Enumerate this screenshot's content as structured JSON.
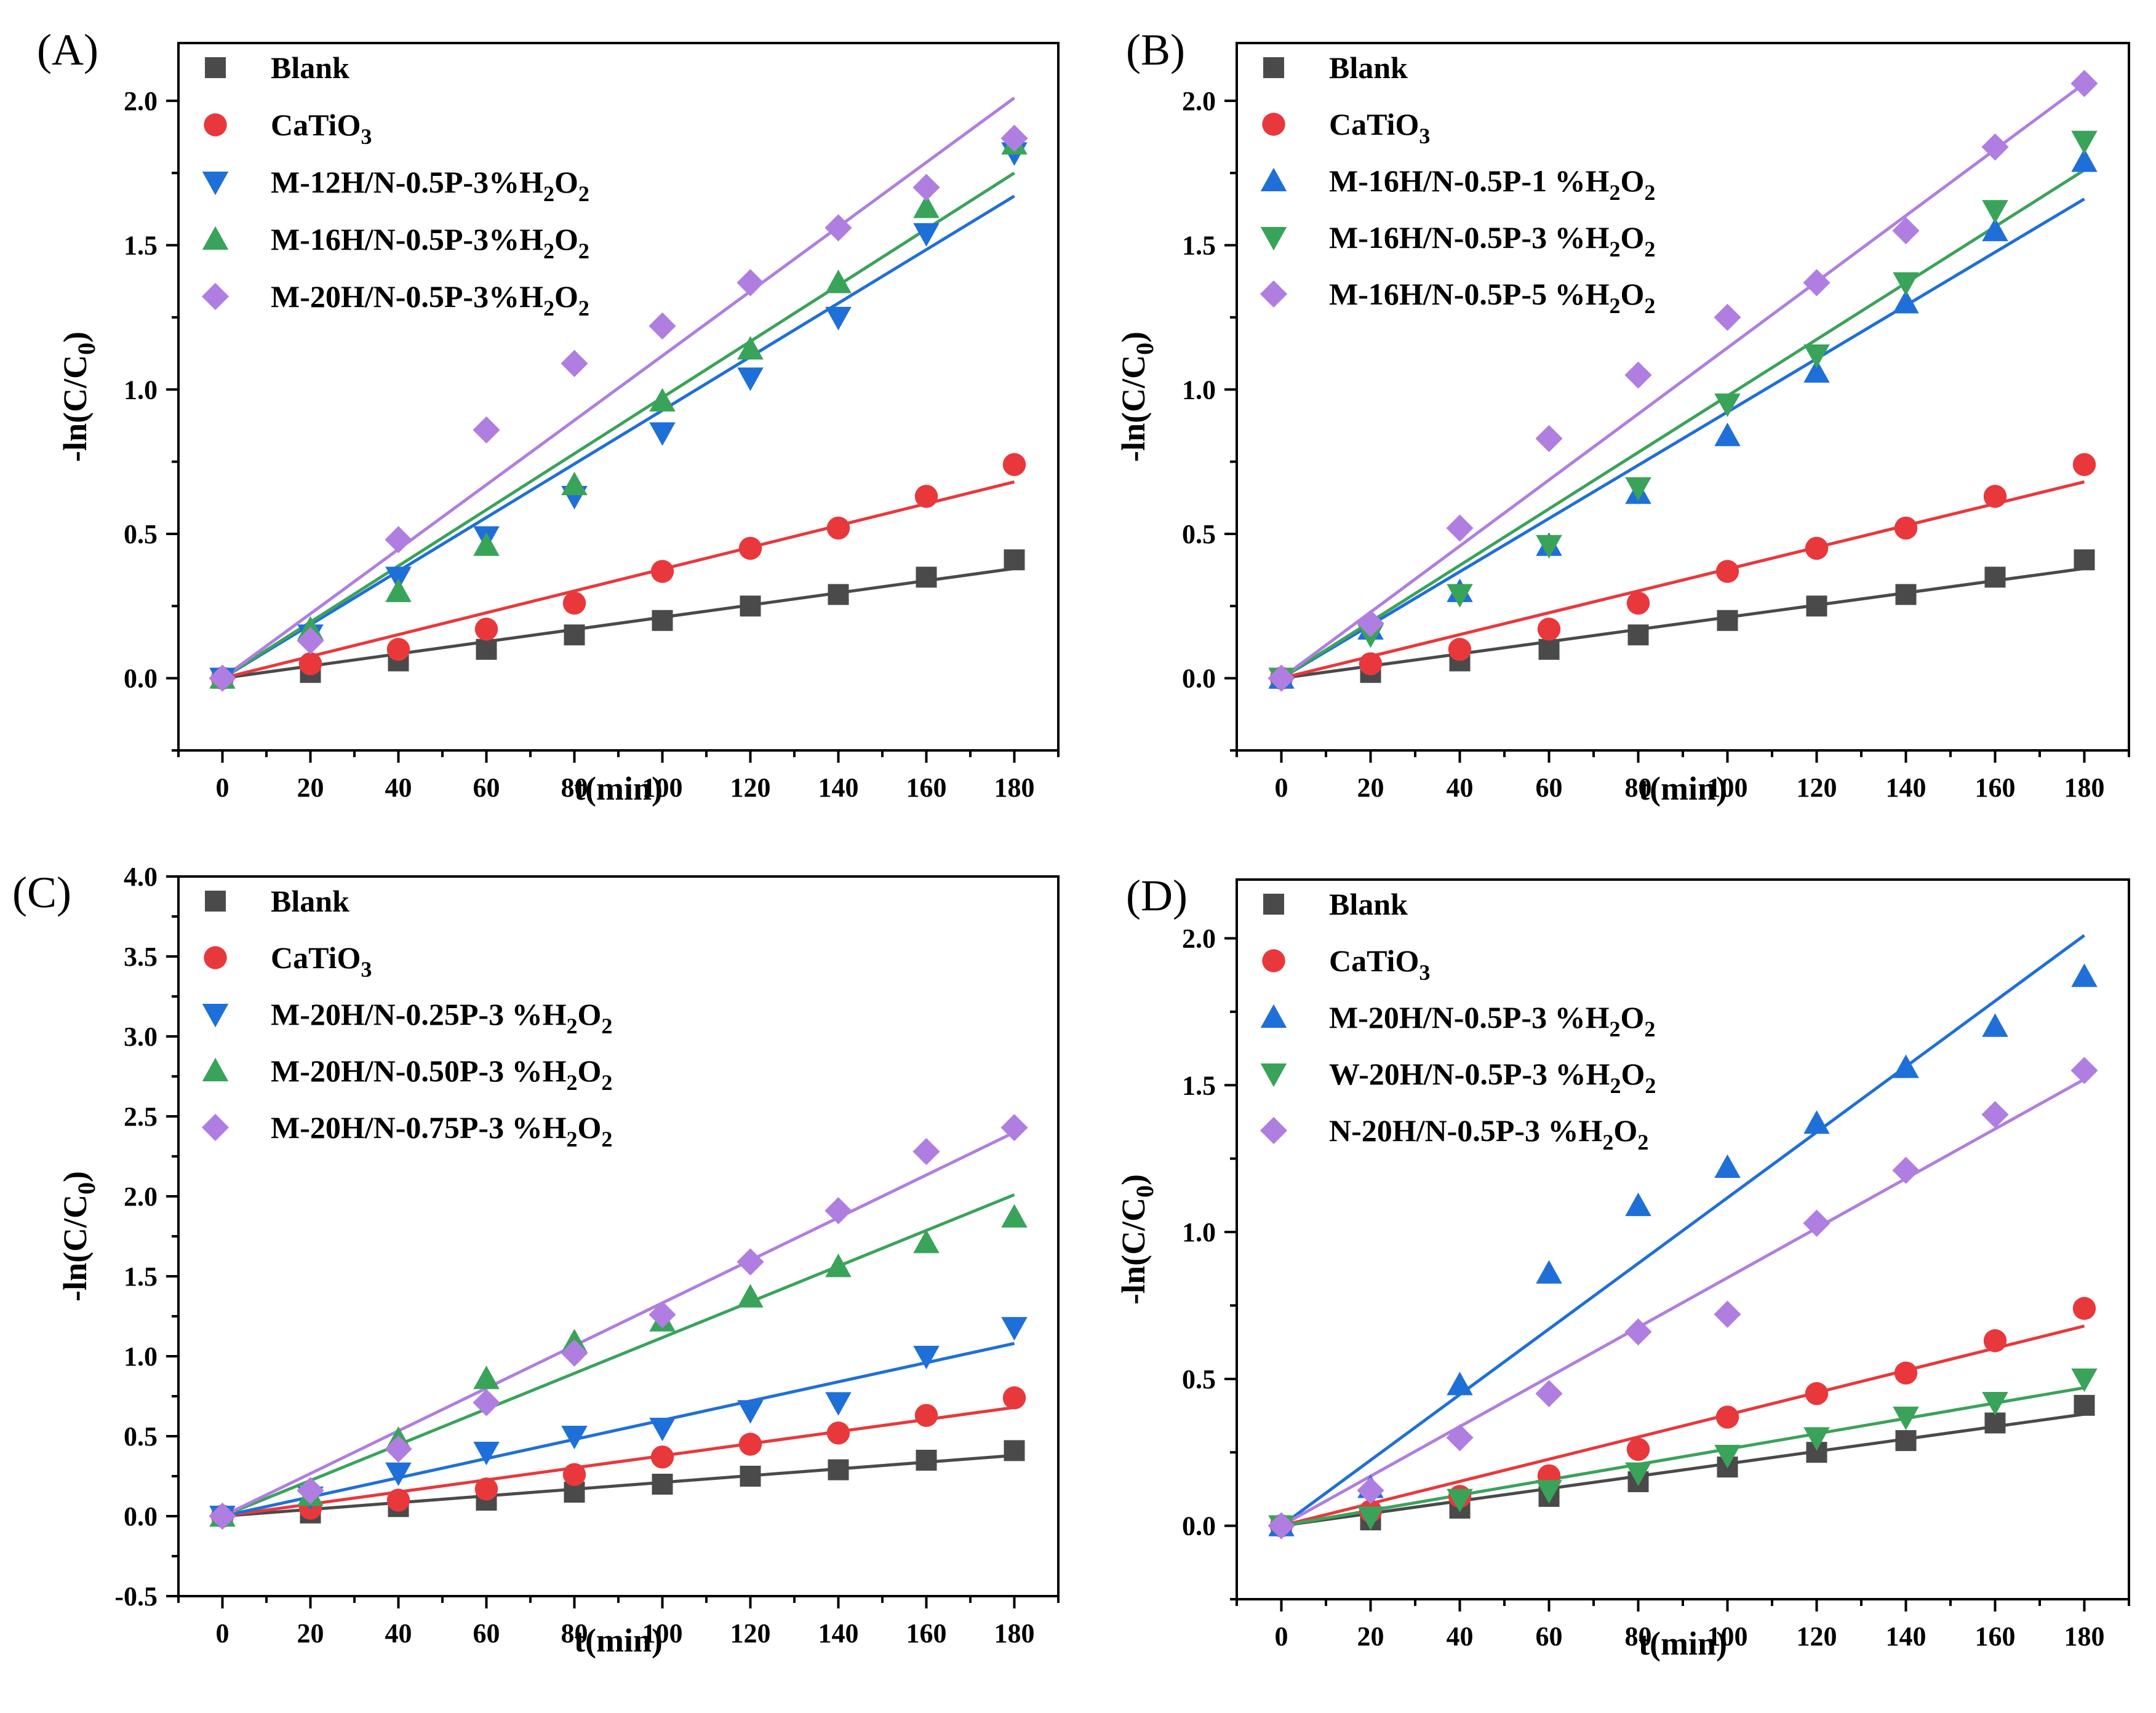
{
  "chart_data": [
    {
      "type": "scatter",
      "panel_label": "(A)",
      "xlabel": "t(min)",
      "ylabel": "-ln(C/C0)",
      "xlim": [
        -10,
        190
      ],
      "ylim": [
        -0.25,
        2.2
      ],
      "xticks": [
        0,
        20,
        40,
        60,
        80,
        100,
        120,
        140,
        160,
        180
      ],
      "yticks": [
        0.0,
        0.5,
        1.0,
        1.5,
        2.0
      ],
      "ytick_labels": [
        "0.0",
        "0.5",
        "1.0",
        "1.5",
        "2.0"
      ],
      "minor_y": true,
      "legend_position": "top-left",
      "x": [
        0,
        20,
        40,
        60,
        80,
        100,
        120,
        140,
        160,
        180
      ],
      "series": [
        {
          "name": "Blank",
          "marker": "square",
          "color": "#4a4a4a",
          "values": [
            0.0,
            0.02,
            0.06,
            0.1,
            0.15,
            0.2,
            0.25,
            0.29,
            0.35,
            0.41
          ],
          "fit_end": 0.38
        },
        {
          "name": "CaTiO3",
          "marker": "circle",
          "color": "#e8383c",
          "values": [
            0.0,
            0.05,
            0.1,
            0.17,
            0.26,
            0.37,
            0.45,
            0.52,
            0.63,
            0.74
          ],
          "fit_end": 0.68
        },
        {
          "name": "M-12H/N-0.5P-3%H2O2",
          "marker": "triangle-down",
          "color": "#1f6fd8",
          "values": [
            0.0,
            0.15,
            0.35,
            0.49,
            0.63,
            0.85,
            1.04,
            1.25,
            1.54,
            1.82
          ],
          "fit_end": 1.67
        },
        {
          "name": "M-16H/N-0.5P-3%H2O2",
          "marker": "triangle-up",
          "color": "#3aa35a",
          "values": [
            0.0,
            0.17,
            0.3,
            0.46,
            0.67,
            0.96,
            1.14,
            1.37,
            1.63,
            1.85
          ],
          "fit_end": 1.75
        },
        {
          "name": "M-20H/N-0.5P-3%H2O2",
          "marker": "diamond",
          "color": "#b07ee0",
          "values": [
            0.0,
            0.13,
            0.48,
            0.86,
            1.09,
            1.22,
            1.37,
            1.56,
            1.7,
            1.87
          ],
          "fit_end": 2.01
        }
      ]
    },
    {
      "type": "scatter",
      "panel_label": "(B)",
      "xlabel": "t(min)",
      "ylabel": "-ln(C/C0)",
      "xlim": [
        -10,
        190
      ],
      "ylim": [
        -0.25,
        2.2
      ],
      "xticks": [
        0,
        20,
        40,
        60,
        80,
        100,
        120,
        140,
        160,
        180
      ],
      "yticks": [
        0.0,
        0.5,
        1.0,
        1.5,
        2.0
      ],
      "ytick_labels": [
        "0.0",
        "0.5",
        "1.0",
        "1.5",
        "2.0"
      ],
      "minor_y": true,
      "legend_position": "top-left",
      "x": [
        0,
        20,
        40,
        60,
        80,
        100,
        120,
        140,
        160,
        180
      ],
      "series": [
        {
          "name": "Blank",
          "marker": "square",
          "color": "#4a4a4a",
          "values": [
            0.0,
            0.02,
            0.06,
            0.1,
            0.15,
            0.2,
            0.25,
            0.29,
            0.35,
            0.41
          ],
          "fit_end": 0.38
        },
        {
          "name": "CaTiO3",
          "marker": "circle",
          "color": "#e8383c",
          "values": [
            0.0,
            0.05,
            0.1,
            0.17,
            0.26,
            0.37,
            0.45,
            0.52,
            0.63,
            0.74
          ],
          "fit_end": 0.68
        },
        {
          "name": "M-16H/N-0.5P-1 %H2O2",
          "marker": "triangle-up",
          "color": "#1f6fd8",
          "values": [
            0.0,
            0.17,
            0.3,
            0.46,
            0.64,
            0.84,
            1.06,
            1.3,
            1.55,
            1.79
          ],
          "fit_end": 1.66
        },
        {
          "name": "M-16H/N-0.5P-3 %H2O2",
          "marker": "triangle-down",
          "color": "#3aa35a",
          "values": [
            0.0,
            0.15,
            0.29,
            0.46,
            0.66,
            0.95,
            1.12,
            1.37,
            1.62,
            1.86
          ],
          "fit_end": 1.76
        },
        {
          "name": "M-16H/N-0.5P-5 %H2O2",
          "marker": "diamond",
          "color": "#b07ee0",
          "values": [
            0.0,
            0.19,
            0.52,
            0.83,
            1.05,
            1.25,
            1.37,
            1.55,
            1.84,
            2.06
          ],
          "fit_end": 2.06
        }
      ]
    },
    {
      "type": "scatter",
      "panel_label": "(C)",
      "xlabel": "t(min)",
      "ylabel": "-ln(C/C0)",
      "xlim": [
        -10,
        190
      ],
      "ylim": [
        -0.5,
        4.0
      ],
      "xticks": [
        0,
        20,
        40,
        60,
        80,
        100,
        120,
        140,
        160,
        180
      ],
      "yticks": [
        -0.5,
        0.0,
        0.5,
        1.0,
        1.5,
        2.0,
        2.5,
        3.0,
        3.5,
        4.0
      ],
      "ytick_labels": [
        "-0.5",
        "0.0",
        "0.5",
        "1.0",
        "1.5",
        "2.0",
        "2.5",
        "3.0",
        "3.5",
        "4.0"
      ],
      "minor_y": true,
      "legend_position": "top-left",
      "x": [
        0,
        20,
        40,
        60,
        80,
        100,
        120,
        140,
        160,
        180
      ],
      "series": [
        {
          "name": "Blank",
          "marker": "square",
          "color": "#4a4a4a",
          "values": [
            0.0,
            0.02,
            0.06,
            0.1,
            0.15,
            0.2,
            0.25,
            0.29,
            0.35,
            0.41
          ],
          "fit_end": 0.38
        },
        {
          "name": "CaTiO3",
          "marker": "circle",
          "color": "#e8383c",
          "values": [
            0.0,
            0.05,
            0.1,
            0.17,
            0.26,
            0.37,
            0.45,
            0.52,
            0.63,
            0.74
          ],
          "fit_end": 0.68
        },
        {
          "name": "M-20H/N-0.25P-3 %H2O2",
          "marker": "triangle-down",
          "color": "#1f6fd8",
          "values": [
            0.0,
            0.12,
            0.27,
            0.4,
            0.5,
            0.55,
            0.66,
            0.71,
            1.0,
            1.18
          ],
          "fit_end": 1.08
        },
        {
          "name": "M-20H/N-0.50P-3 %H2O2",
          "marker": "triangle-up",
          "color": "#3aa35a",
          "values": [
            0.0,
            0.13,
            0.48,
            0.86,
            1.09,
            1.22,
            1.37,
            1.56,
            1.71,
            1.87
          ],
          "fit_end": 2.01
        },
        {
          "name": "M-20H/N-0.75P-3 %H2O2",
          "marker": "diamond",
          "color": "#b07ee0",
          "values": [
            0.0,
            0.16,
            0.42,
            0.71,
            1.02,
            1.26,
            1.59,
            1.91,
            2.28,
            2.43
          ],
          "fit_end": 2.4
        }
      ]
    },
    {
      "type": "scatter",
      "panel_label": "(D)",
      "xlabel": "t(min)",
      "ylabel": "-ln(C/C0)",
      "xlim": [
        -10,
        190
      ],
      "ylim": [
        -0.25,
        2.2
      ],
      "xticks": [
        0,
        20,
        40,
        60,
        80,
        100,
        120,
        140,
        160,
        180
      ],
      "yticks": [
        0.0,
        0.5,
        1.0,
        1.5,
        2.0
      ],
      "ytick_labels": [
        "0.0",
        "0.5",
        "1.0",
        "1.5",
        "2.0"
      ],
      "minor_y": true,
      "legend_position": "top-left",
      "x": [
        0,
        20,
        40,
        60,
        80,
        100,
        120,
        140,
        160,
        180
      ],
      "series": [
        {
          "name": "Blank",
          "marker": "square",
          "color": "#4a4a4a",
          "values": [
            0.0,
            0.02,
            0.06,
            0.1,
            0.15,
            0.2,
            0.25,
            0.29,
            0.35,
            0.41
          ],
          "fit_end": 0.38
        },
        {
          "name": "CaTiO3",
          "marker": "circle",
          "color": "#e8383c",
          "values": [
            0.0,
            0.05,
            0.1,
            0.17,
            0.26,
            0.37,
            0.45,
            0.52,
            0.63,
            0.74
          ],
          "fit_end": 0.68
        },
        {
          "name": "M-20H/N-0.5P-3 %H2O2",
          "marker": "triangle-up",
          "color": "#1f6fd8",
          "values": [
            0.0,
            0.13,
            0.48,
            0.86,
            1.09,
            1.22,
            1.37,
            1.56,
            1.7,
            1.87
          ],
          "fit_end": 2.01
        },
        {
          "name": "W-20H/N-0.5P-3 %H2O2",
          "marker": "triangle-down",
          "color": "#3aa35a",
          "values": [
            0.0,
            0.03,
            0.09,
            0.12,
            0.18,
            0.24,
            0.3,
            0.37,
            0.42,
            0.5
          ],
          "fit_end": 0.47
        },
        {
          "name": "N-20H/N-0.5P-3 %H2O2",
          "marker": "diamond",
          "color": "#b07ee0",
          "values": [
            0.0,
            0.12,
            0.3,
            0.45,
            0.66,
            0.72,
            1.03,
            1.21,
            1.4,
            1.55
          ],
          "fit_end": 1.52
        }
      ]
    }
  ]
}
